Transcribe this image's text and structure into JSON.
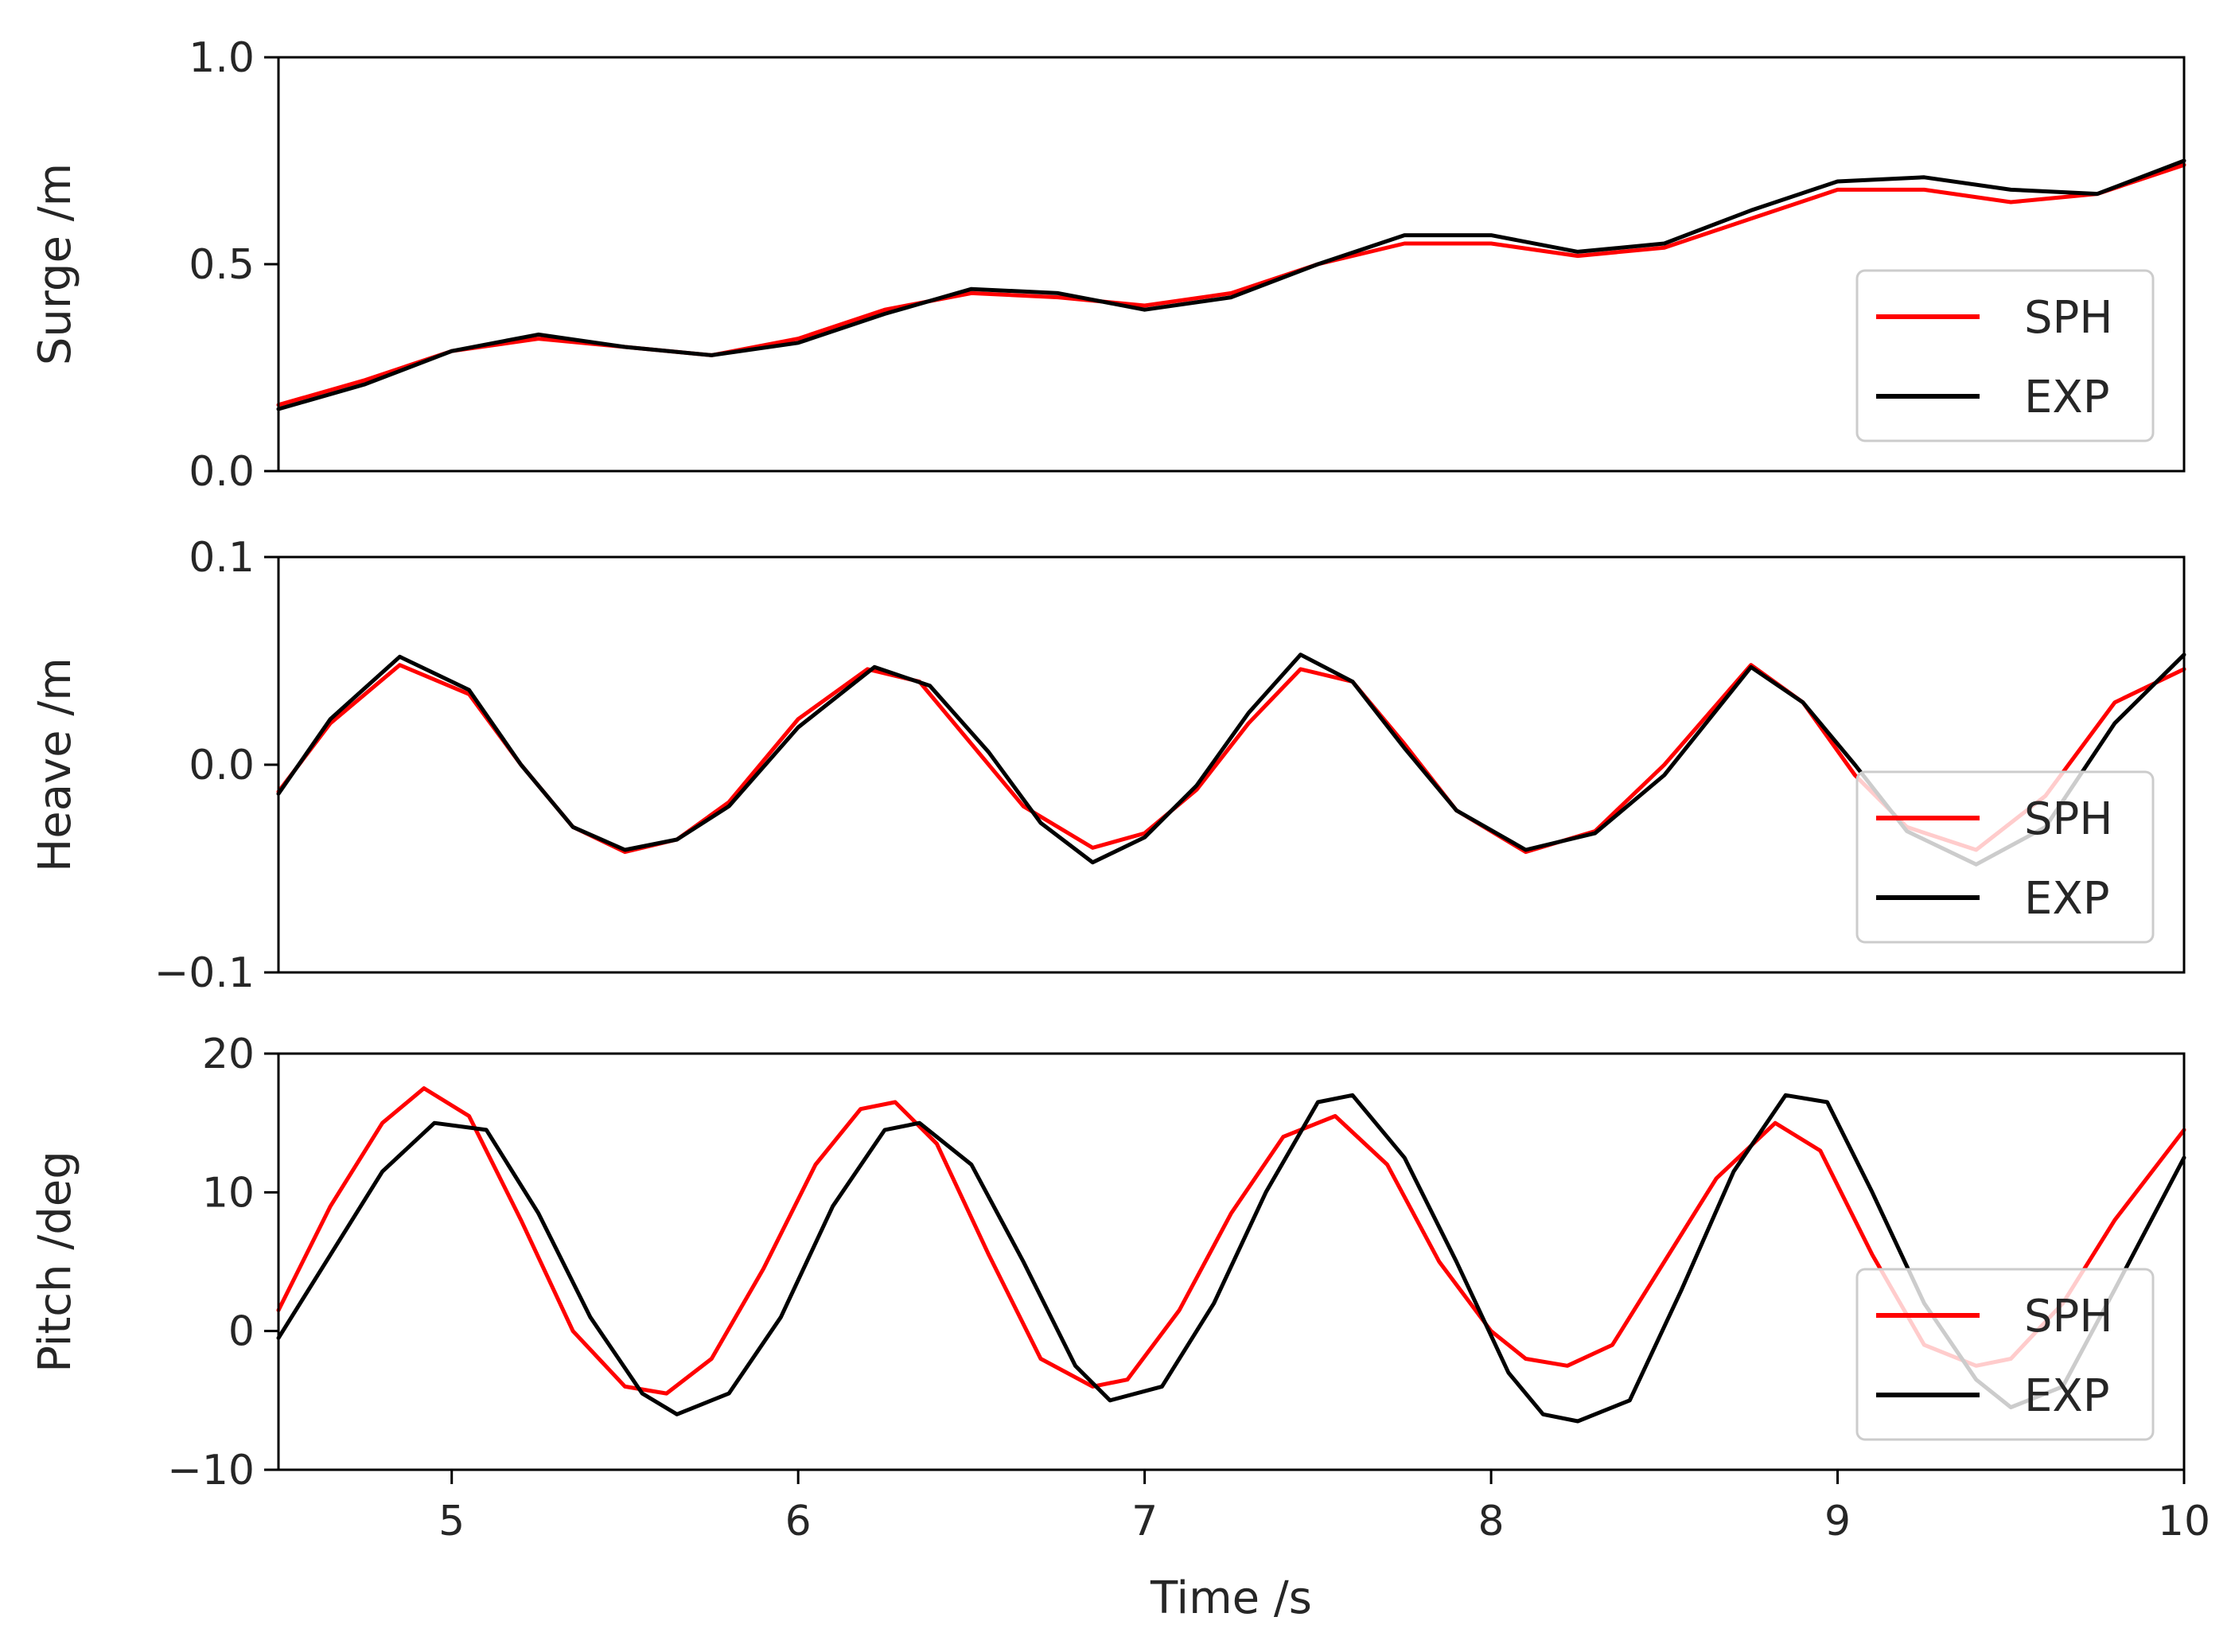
{
  "chart_data": [
    {
      "type": "line",
      "ylabel": "Surge /m",
      "xlim": [
        4.5,
        10
      ],
      "ylim": [
        0.0,
        1.0
      ],
      "yticks": [
        0.0,
        0.5,
        1.0
      ],
      "ytick_labels": [
        "0.0",
        "0.5",
        "1.0"
      ],
      "grid": false,
      "legend_position": "lower-right",
      "series": [
        {
          "name": "SPH",
          "color": "#ff0000",
          "x": [
            4.5,
            4.75,
            5.0,
            5.25,
            5.5,
            5.75,
            6.0,
            6.25,
            6.5,
            6.75,
            7.0,
            7.25,
            7.5,
            7.75,
            8.0,
            8.25,
            8.5,
            8.75,
            9.0,
            9.25,
            9.5,
            9.75,
            10.0
          ],
          "values": [
            0.16,
            0.22,
            0.29,
            0.32,
            0.3,
            0.28,
            0.32,
            0.39,
            0.43,
            0.42,
            0.4,
            0.43,
            0.5,
            0.55,
            0.55,
            0.52,
            0.54,
            0.61,
            0.68,
            0.68,
            0.65,
            0.67,
            0.74
          ]
        },
        {
          "name": "EXP",
          "color": "#000000",
          "x": [
            4.5,
            4.75,
            5.0,
            5.25,
            5.5,
            5.75,
            6.0,
            6.25,
            6.5,
            6.75,
            7.0,
            7.25,
            7.5,
            7.75,
            8.0,
            8.25,
            8.5,
            8.75,
            9.0,
            9.25,
            9.5,
            9.75,
            10.0
          ],
          "values": [
            0.15,
            0.21,
            0.29,
            0.33,
            0.3,
            0.28,
            0.31,
            0.38,
            0.44,
            0.43,
            0.39,
            0.42,
            0.5,
            0.57,
            0.57,
            0.53,
            0.55,
            0.63,
            0.7,
            0.71,
            0.68,
            0.67,
            0.75
          ]
        }
      ]
    },
    {
      "type": "line",
      "ylabel": "Heave /m",
      "xlim": [
        4.5,
        10
      ],
      "ylim": [
        -0.1,
        0.1
      ],
      "yticks": [
        -0.1,
        0.0,
        0.1
      ],
      "ytick_labels": [
        "−0.1",
        "0.0",
        "0.1"
      ],
      "grid": false,
      "legend_position": "lower-right",
      "series": [
        {
          "name": "SPH",
          "color": "#ff0000",
          "x": [
            4.5,
            4.65,
            4.85,
            5.05,
            5.2,
            5.35,
            5.5,
            5.65,
            5.8,
            6.0,
            6.2,
            6.35,
            6.5,
            6.65,
            6.85,
            7.0,
            7.15,
            7.3,
            7.45,
            7.6,
            7.75,
            7.9,
            8.1,
            8.3,
            8.5,
            8.75,
            8.9,
            9.05,
            9.2,
            9.4,
            9.6,
            9.8,
            10.0
          ],
          "values": [
            -0.013,
            0.02,
            0.048,
            0.034,
            0.0,
            -0.03,
            -0.042,
            -0.036,
            -0.018,
            0.022,
            0.046,
            0.04,
            0.01,
            -0.02,
            -0.04,
            -0.033,
            -0.012,
            0.02,
            0.046,
            0.04,
            0.01,
            -0.022,
            -0.042,
            -0.032,
            0.0,
            0.048,
            0.03,
            -0.005,
            -0.03,
            -0.041,
            -0.015,
            0.03,
            0.046
          ]
        },
        {
          "name": "EXP",
          "color": "#000000",
          "x": [
            4.5,
            4.65,
            4.85,
            5.05,
            5.2,
            5.35,
            5.5,
            5.65,
            5.8,
            6.0,
            6.22,
            6.38,
            6.55,
            6.7,
            6.85,
            7.0,
            7.15,
            7.3,
            7.45,
            7.6,
            7.75,
            7.9,
            8.1,
            8.3,
            8.5,
            8.75,
            8.9,
            9.05,
            9.2,
            9.4,
            9.6,
            9.8,
            10.0
          ],
          "values": [
            -0.014,
            0.022,
            0.052,
            0.036,
            0.0,
            -0.03,
            -0.041,
            -0.036,
            -0.02,
            0.018,
            0.047,
            0.038,
            0.006,
            -0.028,
            -0.047,
            -0.035,
            -0.01,
            0.025,
            0.053,
            0.04,
            0.008,
            -0.022,
            -0.041,
            -0.033,
            -0.005,
            0.047,
            0.03,
            0.0,
            -0.032,
            -0.048,
            -0.03,
            0.02,
            0.053
          ]
        }
      ]
    },
    {
      "type": "line",
      "xlabel": "Time /s",
      "ylabel": "Pitch /deg",
      "xlim": [
        4.5,
        10
      ],
      "ylim": [
        -10,
        20
      ],
      "xticks": [
        5,
        6,
        7,
        8,
        9,
        10
      ],
      "xtick_labels": [
        "5",
        "6",
        "7",
        "8",
        "9",
        "10"
      ],
      "yticks": [
        -10,
        0,
        10,
        20
      ],
      "ytick_labels": [
        "−10",
        "0",
        "10",
        "20"
      ],
      "grid": false,
      "legend_position": "lower-right",
      "series": [
        {
          "name": "SPH",
          "color": "#ff0000",
          "x": [
            4.5,
            4.65,
            4.8,
            4.92,
            5.05,
            5.2,
            5.35,
            5.5,
            5.62,
            5.75,
            5.9,
            6.05,
            6.18,
            6.28,
            6.4,
            6.55,
            6.7,
            6.85,
            6.95,
            7.1,
            7.25,
            7.4,
            7.55,
            7.7,
            7.85,
            8.0,
            8.1,
            8.22,
            8.35,
            8.5,
            8.65,
            8.82,
            8.95,
            9.1,
            9.25,
            9.4,
            9.5,
            9.65,
            9.8,
            10.0
          ],
          "values": [
            1.5,
            9.0,
            15.0,
            17.5,
            15.5,
            8.0,
            0.0,
            -4.0,
            -4.5,
            -2.0,
            4.5,
            12.0,
            16.0,
            16.5,
            13.5,
            5.5,
            -2.0,
            -4.0,
            -3.5,
            1.5,
            8.5,
            14.0,
            15.5,
            12.0,
            5.0,
            0.0,
            -2.0,
            -2.5,
            -1.0,
            5.0,
            11.0,
            15.0,
            13.0,
            5.5,
            -1.0,
            -2.5,
            -2.0,
            2.0,
            8.0,
            14.5
          ]
        },
        {
          "name": "EXP",
          "color": "#000000",
          "x": [
            4.5,
            4.65,
            4.8,
            4.95,
            5.1,
            5.25,
            5.4,
            5.55,
            5.65,
            5.8,
            5.95,
            6.1,
            6.25,
            6.35,
            6.5,
            6.65,
            6.8,
            6.9,
            7.05,
            7.2,
            7.35,
            7.5,
            7.6,
            7.75,
            7.9,
            8.05,
            8.15,
            8.25,
            8.4,
            8.55,
            8.7,
            8.85,
            8.97,
            9.1,
            9.25,
            9.4,
            9.5,
            9.65,
            9.8,
            10.0
          ],
          "values": [
            -0.5,
            5.5,
            11.5,
            15.0,
            14.5,
            8.5,
            1.0,
            -4.5,
            -6.0,
            -4.5,
            1.0,
            9.0,
            14.5,
            15.0,
            12.0,
            5.0,
            -2.5,
            -5.0,
            -4.0,
            2.0,
            10.0,
            16.5,
            17.0,
            12.5,
            5.0,
            -3.0,
            -6.0,
            -6.5,
            -5.0,
            3.0,
            11.5,
            17.0,
            16.5,
            10.0,
            2.0,
            -3.5,
            -5.5,
            -4.0,
            3.0,
            12.5
          ]
        }
      ]
    }
  ]
}
